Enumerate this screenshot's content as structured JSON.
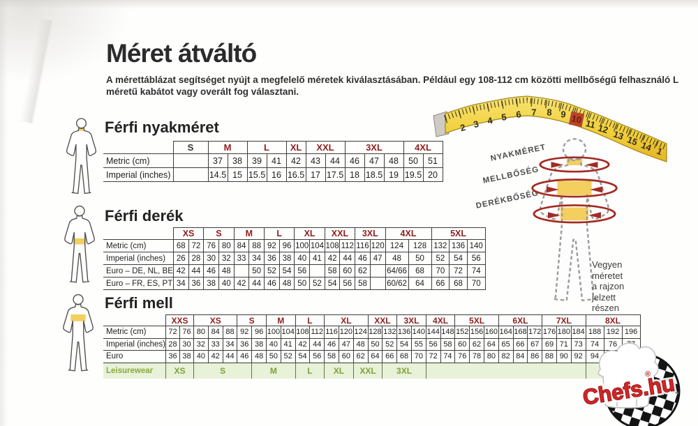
{
  "page": {
    "title": "Méret átváltó",
    "subtitle_lines": [
      "A mérettáblázat segítséget nyújt a megfelelő méretek kiválasztásában. Például egy 108-112 cm közötti mellbőségű felhasználó L",
      "méretű kabátot vagy overált fog választani."
    ]
  },
  "colors": {
    "size_header_red": "#8e1f1f",
    "leisure_green_text": "#7fa03a",
    "leisure_green_bg": "#e7f2d8",
    "tape_yellow": "#f2cf3a",
    "tape_highlight_red": "#b5452c",
    "arrow_red": "#a32b22",
    "band_yellow": "#f2cf5e",
    "logo_red": "#d42424"
  },
  "diagram": {
    "labels": [
      "NYAKMÉRET",
      "MELLBŐSÉG",
      "DERÉKBŐSÉG"
    ],
    "note_lines": [
      "Vegyen",
      "méretet",
      "a rajzon",
      "jelzett",
      "részen"
    ],
    "tape_numbers": [
      "2",
      "3",
      "4",
      "5",
      "6",
      "7",
      "8",
      "9",
      "10",
      "11",
      "12",
      "13",
      "15",
      "14",
      "1"
    ],
    "tape_highlight": "10"
  },
  "logo": {
    "text": "Chefs.hu",
    "registered": "®"
  },
  "tables": [
    {
      "id": "neck",
      "heading": "Férfi nyakméret",
      "header": [
        {
          "label": "S",
          "span": 1
        },
        {
          "label": "M",
          "span": 2
        },
        {
          "label": "L",
          "span": 2
        },
        {
          "label": "XL",
          "span": 1
        },
        {
          "label": "XXL",
          "span": 2
        },
        {
          "label": "3XL",
          "span": 3
        },
        {
          "label": "4XL",
          "span": 2
        }
      ],
      "rows": [
        {
          "label": "Metric  (cm)",
          "cells": [
            "",
            "37",
            "38",
            "39",
            "41",
            "42",
            "43",
            "44",
            "46",
            "47",
            "48",
            "50",
            "51"
          ]
        },
        {
          "label": "Imperial (inches)",
          "cells": [
            "",
            "14.5",
            "15",
            "15.5",
            "16",
            "16.5",
            "17",
            "17.5",
            "18",
            "18.5",
            "19",
            "19.5",
            "20"
          ]
        }
      ]
    },
    {
      "id": "derek",
      "heading": "Férfi derék",
      "header": [
        {
          "label": "XS",
          "span": 2
        },
        {
          "label": "S",
          "span": 2
        },
        {
          "label": "M",
          "span": 2
        },
        {
          "label": "L",
          "span": 2
        },
        {
          "label": "XL",
          "span": 2
        },
        {
          "label": "XXL",
          "span": 2
        },
        {
          "label": "3XL",
          "span": 2
        },
        {
          "label": "4XL",
          "span": 2
        },
        {
          "label": "5XL",
          "span": 3
        }
      ],
      "rows": [
        {
          "label": "Metric  (cm)",
          "cells": [
            "68",
            "72",
            "76",
            "80",
            "84",
            "88",
            "92",
            "96",
            "100",
            "104",
            "108",
            "112",
            "116",
            "120",
            "124",
            "128",
            "132",
            "136",
            "140"
          ]
        },
        {
          "label": "Imperial (inches)",
          "cells": [
            "26",
            "28",
            "30",
            "32",
            "33",
            "34",
            "36",
            "38",
            "40",
            "41",
            "42",
            "44",
            "46",
            "47",
            "48",
            "50",
            "52",
            "54",
            "56"
          ]
        },
        {
          "label": "Euro – DE, NL, BE",
          "cells": [
            "42",
            "44",
            "46",
            "48",
            "",
            "50",
            "52",
            "54",
            "56",
            "",
            "58",
            "60",
            "62",
            "",
            "64/66",
            "68",
            "70",
            "72",
            "74"
          ]
        },
        {
          "label": "Euro – FR, ES, PT",
          "cells": [
            "34",
            "36",
            "38",
            "40",
            "42",
            "44",
            "46",
            "48",
            "50",
            "52",
            "54",
            "56",
            "58",
            "",
            "60/62",
            "64",
            "66",
            "68",
            "70"
          ]
        }
      ]
    },
    {
      "id": "mell",
      "heading": "Férfi mell",
      "header": [
        {
          "label": "XXS",
          "span": 2
        },
        {
          "label": "XS",
          "span": 3
        },
        {
          "label": "S",
          "span": 2
        },
        {
          "label": "M",
          "span": 2
        },
        {
          "label": "L",
          "span": 2
        },
        {
          "label": "XL",
          "span": 3
        },
        {
          "label": "XXL",
          "span": 2
        },
        {
          "label": "3XL",
          "span": 2
        },
        {
          "label": "4XL",
          "span": 2
        },
        {
          "label": "5XL",
          "span": 3
        },
        {
          "label": "6XL",
          "span": 3
        },
        {
          "label": "7XL",
          "span": 3
        },
        {
          "label": "8XL",
          "span": 3
        }
      ],
      "rows": [
        {
          "label": "Metric  (cm)",
          "cells": [
            "72",
            "76",
            "80",
            "84",
            "88",
            "92",
            "96",
            "100",
            "104",
            "108",
            "112",
            "116",
            "120",
            "124",
            "128",
            "132",
            "136",
            "140",
            "144",
            "148",
            "152",
            "156",
            "160",
            "164",
            "168",
            "172",
            "176",
            "180",
            "184",
            "188",
            "192",
            "196"
          ]
        },
        {
          "label": "Imperial (inches)",
          "cells": [
            "28",
            "30",
            "32",
            "33",
            "34",
            "36",
            "38",
            "40",
            "41",
            "42",
            "44",
            "46",
            "47",
            "48",
            "50",
            "52",
            "54",
            "55",
            "56",
            "58",
            "60",
            "62",
            "64",
            "65",
            "66",
            "67",
            "69",
            "71",
            "73",
            "74",
            "76",
            "77"
          ]
        },
        {
          "label": "Euro",
          "cells": [
            "36",
            "38",
            "40",
            "42",
            "44",
            "46",
            "48",
            "50",
            "52",
            "54",
            "56",
            "58",
            "60",
            "62",
            "64",
            "66",
            "68",
            "70",
            "72",
            "74",
            "76",
            "78",
            "80",
            "82",
            "84",
            "86",
            "88",
            "90",
            "92",
            "94",
            "96",
            ""
          ]
        }
      ],
      "leisure_label": "Leisurewear",
      "leisure": [
        {
          "label": "XS",
          "span": 2
        },
        {
          "label": "S",
          "span": 4
        },
        {
          "label": "M",
          "span": 3
        },
        {
          "label": "L",
          "span": 2
        },
        {
          "label": "XL",
          "span": 2
        },
        {
          "label": "XXL",
          "span": 2
        },
        {
          "label": "3XL",
          "span": 3
        },
        {
          "label": "",
          "span": 11
        },
        {
          "label": "",
          "span": 3
        }
      ]
    }
  ]
}
